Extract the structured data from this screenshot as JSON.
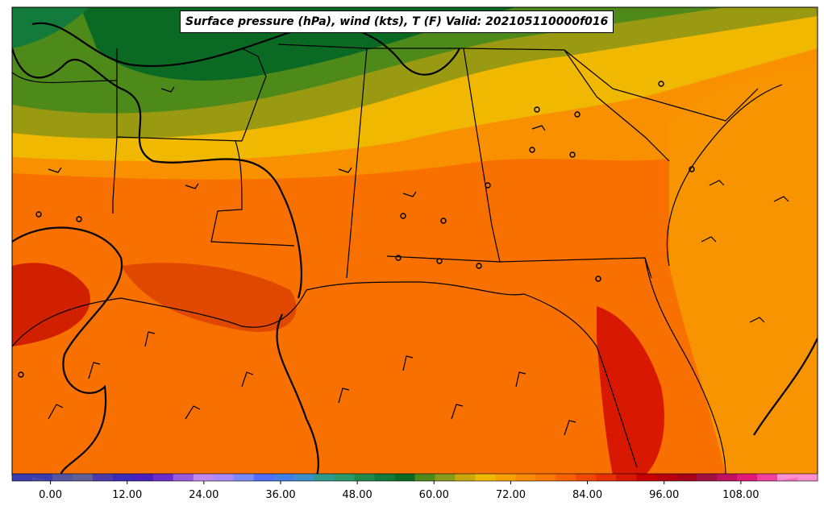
{
  "map": {
    "title": "Surface pressure (hPa), wind (kts), T (F) Valid: 202105110000f016",
    "colorbar": {
      "tick_labels": [
        "0.00",
        "12.00",
        "24.00",
        "36.00",
        "48.00",
        "60.00",
        "72.00",
        "84.00",
        "96.00",
        "108.00"
      ],
      "tick_values": [
        0,
        12,
        24,
        36,
        48,
        60,
        72,
        84,
        96,
        108
      ],
      "range": [
        -6,
        120
      ],
      "step": 3,
      "extend": "both",
      "palette": [
        "#3b3bb0",
        "#4848a8",
        "#5656a0",
        "#606098",
        "#4b3aa8",
        "#3a2bb8",
        "#4a1fc0",
        "#6a2ccc",
        "#9a5ae0",
        "#c08af0",
        "#a98aff",
        "#7a8bff",
        "#4f6dff",
        "#3f7fe6",
        "#3b8fca",
        "#2e9a8e",
        "#2a9a6a",
        "#1f8a4a",
        "#127a3a",
        "#0a6a24",
        "#4e8a1a",
        "#8a9a1a",
        "#c8a80a",
        "#f0b800",
        "#f8a000",
        "#f88a00",
        "#f87800",
        "#f86000",
        "#f04800",
        "#e83000",
        "#d81800",
        "#c80000",
        "#b80010",
        "#a80018",
        "#a01040",
        "#c01060",
        "#e01878",
        "#f040a0",
        "#f870c0",
        "#ff90d0"
      ]
    },
    "legend_units": "T (F)"
  }
}
